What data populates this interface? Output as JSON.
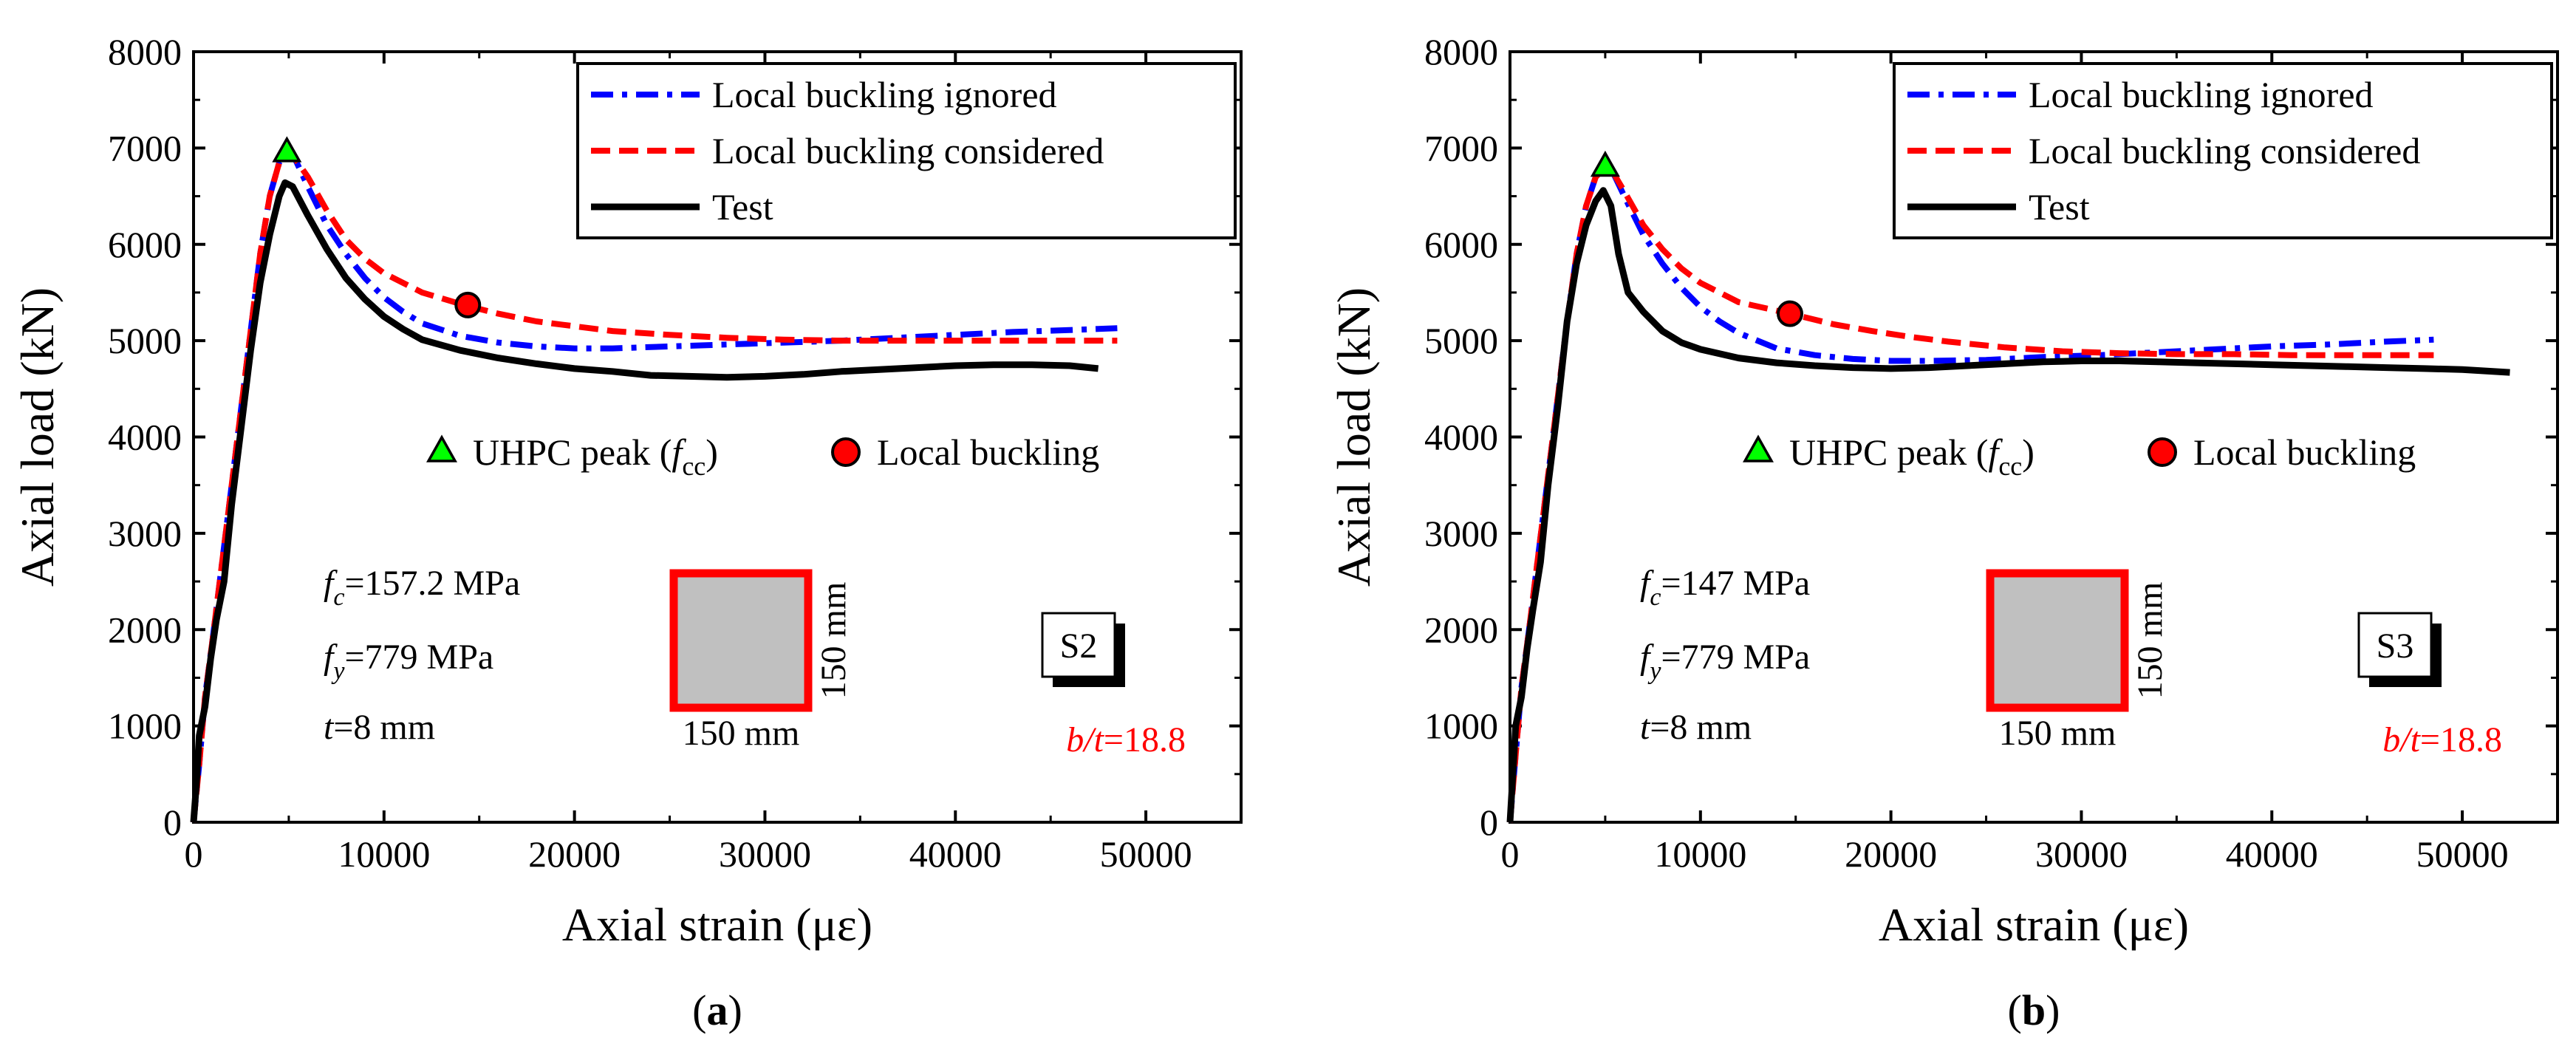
{
  "chart_data": [
    {
      "type": "line",
      "panel_label": "a",
      "xlabel": "Axial strain (με)",
      "ylabel": "Axial load (kN)",
      "xlim": [
        0,
        55000
      ],
      "ylim": [
        0,
        8000
      ],
      "x_ticks": [
        "0",
        "10000",
        "20000",
        "30000",
        "40000",
        "50000"
      ],
      "y_ticks": [
        "0",
        "1000",
        "2000",
        "3000",
        "4000",
        "5000",
        "6000",
        "7000",
        "8000"
      ],
      "legend": [
        "Local buckling ignored",
        "Local buckling considered",
        "Test"
      ],
      "marker_legend": {
        "peak": "UHPC peak (",
        "peak_symbol": "f",
        "peak_sub": "cc",
        "peak_close": ")",
        "buckling": "Local buckling"
      },
      "series": [
        {
          "name": "Local buckling ignored",
          "color": "#0000ff",
          "style": "dashdot",
          "points": [
            [
              0,
              0
            ],
            [
              300,
              600
            ],
            [
              600,
              1300
            ],
            [
              1000,
              1900
            ],
            [
              1500,
              2700
            ],
            [
              2000,
              3500
            ],
            [
              2500,
              4300
            ],
            [
              3000,
              5100
            ],
            [
              3500,
              5900
            ],
            [
              4000,
              6500
            ],
            [
              4500,
              6850
            ],
            [
              4900,
              6950
            ],
            [
              5300,
              6900
            ],
            [
              6000,
              6600
            ],
            [
              7000,
              6200
            ],
            [
              8000,
              5900
            ],
            [
              9000,
              5650
            ],
            [
              10000,
              5450
            ],
            [
              11000,
              5300
            ],
            [
              12000,
              5180
            ],
            [
              14000,
              5050
            ],
            [
              16000,
              4980
            ],
            [
              18000,
              4940
            ],
            [
              20000,
              4920
            ],
            [
              22000,
              4920
            ],
            [
              25000,
              4940
            ],
            [
              28000,
              4960
            ],
            [
              31000,
              4980
            ],
            [
              34000,
              5000
            ],
            [
              37000,
              5030
            ],
            [
              40000,
              5060
            ],
            [
              43000,
              5090
            ],
            [
              46000,
              5110
            ],
            [
              48500,
              5130
            ]
          ]
        },
        {
          "name": "Local buckling considered",
          "color": "#ff0000",
          "style": "dashed",
          "points": [
            [
              0,
              0
            ],
            [
              300,
              600
            ],
            [
              600,
              1300
            ],
            [
              1000,
              1900
            ],
            [
              1500,
              2700
            ],
            [
              2000,
              3500
            ],
            [
              2500,
              4300
            ],
            [
              3000,
              5100
            ],
            [
              3500,
              5900
            ],
            [
              4000,
              6500
            ],
            [
              4500,
              6850
            ],
            [
              4900,
              6950
            ],
            [
              5300,
              6900
            ],
            [
              6000,
              6700
            ],
            [
              7000,
              6350
            ],
            [
              8000,
              6050
            ],
            [
              9000,
              5850
            ],
            [
              10000,
              5700
            ],
            [
              12000,
              5500
            ],
            [
              14200,
              5370
            ],
            [
              16000,
              5280
            ],
            [
              18000,
              5200
            ],
            [
              20000,
              5150
            ],
            [
              22000,
              5100
            ],
            [
              25000,
              5060
            ],
            [
              28000,
              5030
            ],
            [
              31000,
              5010
            ],
            [
              34000,
              5000
            ],
            [
              37000,
              5000
            ],
            [
              40000,
              5000
            ],
            [
              43000,
              5000
            ],
            [
              46000,
              5000
            ],
            [
              48500,
              5000
            ]
          ]
        },
        {
          "name": "Test",
          "color": "#000000",
          "style": "solid",
          "points": [
            [
              0,
              0
            ],
            [
              150,
              400
            ],
            [
              300,
              900
            ],
            [
              600,
              1200
            ],
            [
              900,
              1700
            ],
            [
              1200,
              2100
            ],
            [
              1600,
              2500
            ],
            [
              2000,
              3300
            ],
            [
              2500,
              4100
            ],
            [
              3000,
              4900
            ],
            [
              3500,
              5600
            ],
            [
              4000,
              6100
            ],
            [
              4500,
              6500
            ],
            [
              4800,
              6640
            ],
            [
              5200,
              6600
            ],
            [
              6000,
              6300
            ],
            [
              7000,
              5950
            ],
            [
              8000,
              5650
            ],
            [
              9000,
              5430
            ],
            [
              10000,
              5250
            ],
            [
              11000,
              5120
            ],
            [
              12000,
              5010
            ],
            [
              14000,
              4900
            ],
            [
              16000,
              4820
            ],
            [
              18000,
              4760
            ],
            [
              20000,
              4710
            ],
            [
              22000,
              4680
            ],
            [
              24000,
              4640
            ],
            [
              26000,
              4630
            ],
            [
              28000,
              4620
            ],
            [
              30000,
              4630
            ],
            [
              32000,
              4650
            ],
            [
              34000,
              4680
            ],
            [
              36000,
              4700
            ],
            [
              38000,
              4720
            ],
            [
              40000,
              4740
            ],
            [
              42000,
              4750
            ],
            [
              44000,
              4750
            ],
            [
              46000,
              4740
            ],
            [
              47500,
              4710
            ]
          ]
        }
      ],
      "peak_marker": {
        "x": 4900,
        "y": 6950,
        "color": "#00ff00"
      },
      "buckling_marker": {
        "x": 14400,
        "y": 5370,
        "color": "#ff0000"
      },
      "params": [
        {
          "sym": "f",
          "sub": "c",
          "val": "=157.2 MPa"
        },
        {
          "sym": "f",
          "sub": "y",
          "val": "=779 MPa"
        },
        {
          "sym": "t",
          "sub": "",
          "val": "=8 mm"
        }
      ],
      "section": {
        "width_label": "150 mm",
        "height_label": "150 mm"
      },
      "specimen": "S2",
      "ratio": {
        "sym": "b/t",
        "val": "=18.8"
      }
    },
    {
      "type": "line",
      "panel_label": "b",
      "xlabel": "Axial strain (με)",
      "ylabel": "Axial load (kN)",
      "xlim": [
        0,
        55000
      ],
      "ylim": [
        0,
        8000
      ],
      "x_ticks": [
        "0",
        "10000",
        "20000",
        "30000",
        "40000",
        "50000"
      ],
      "y_ticks": [
        "0",
        "1000",
        "2000",
        "3000",
        "4000",
        "5000",
        "6000",
        "7000",
        "8000"
      ],
      "legend": [
        "Local buckling ignored",
        "Local buckling considered",
        "Test"
      ],
      "marker_legend": {
        "peak": "UHPC peak (",
        "peak_symbol": "f",
        "peak_sub": "cc",
        "peak_close": ")",
        "buckling": "Local buckling"
      },
      "series": [
        {
          "name": "Local buckling ignored",
          "color": "#0000ff",
          "style": "dashdot",
          "points": [
            [
              0,
              0
            ],
            [
              300,
              700
            ],
            [
              600,
              1400
            ],
            [
              1000,
              2000
            ],
            [
              1500,
              2800
            ],
            [
              2000,
              3600
            ],
            [
              2500,
              4400
            ],
            [
              3000,
              5200
            ],
            [
              3500,
              5900
            ],
            [
              4000,
              6400
            ],
            [
              4500,
              6700
            ],
            [
              5000,
              6800
            ],
            [
              5400,
              6750
            ],
            [
              6000,
              6500
            ],
            [
              7000,
              6100
            ],
            [
              8000,
              5800
            ],
            [
              9000,
              5550
            ],
            [
              10000,
              5350
            ],
            [
              11000,
              5200
            ],
            [
              12000,
              5080
            ],
            [
              14000,
              4920
            ],
            [
              16000,
              4850
            ],
            [
              18000,
              4810
            ],
            [
              20000,
              4790
            ],
            [
              22000,
              4790
            ],
            [
              25000,
              4800
            ],
            [
              28000,
              4830
            ],
            [
              31000,
              4850
            ],
            [
              34000,
              4880
            ],
            [
              37000,
              4910
            ],
            [
              40000,
              4940
            ],
            [
              43000,
              4960
            ],
            [
              46000,
              4990
            ],
            [
              48500,
              5010
            ]
          ]
        },
        {
          "name": "Local buckling considered",
          "color": "#ff0000",
          "style": "dashed",
          "points": [
            [
              0,
              0
            ],
            [
              300,
              700
            ],
            [
              600,
              1400
            ],
            [
              1000,
              2000
            ],
            [
              1500,
              2800
            ],
            [
              2000,
              3600
            ],
            [
              2500,
              4400
            ],
            [
              3000,
              5200
            ],
            [
              3500,
              5900
            ],
            [
              4000,
              6400
            ],
            [
              4500,
              6700
            ],
            [
              5000,
              6800
            ],
            [
              5400,
              6750
            ],
            [
              6000,
              6550
            ],
            [
              7000,
              6200
            ],
            [
              8000,
              5950
            ],
            [
              9000,
              5750
            ],
            [
              10000,
              5600
            ],
            [
              12000,
              5400
            ],
            [
              14700,
              5280
            ],
            [
              17000,
              5170
            ],
            [
              19000,
              5100
            ],
            [
              21000,
              5040
            ],
            [
              23000,
              4990
            ],
            [
              26000,
              4930
            ],
            [
              29000,
              4890
            ],
            [
              32000,
              4870
            ],
            [
              35000,
              4860
            ],
            [
              38000,
              4860
            ],
            [
              41000,
              4850
            ],
            [
              44000,
              4850
            ],
            [
              47000,
              4850
            ],
            [
              48500,
              4850
            ]
          ]
        },
        {
          "name": "Test",
          "color": "#000000",
          "style": "solid",
          "points": [
            [
              0,
              0
            ],
            [
              150,
              500
            ],
            [
              300,
              1000
            ],
            [
              600,
              1300
            ],
            [
              900,
              1800
            ],
            [
              1200,
              2200
            ],
            [
              1600,
              2700
            ],
            [
              2000,
              3500
            ],
            [
              2500,
              4300
            ],
            [
              3000,
              5200
            ],
            [
              3500,
              5800
            ],
            [
              4000,
              6200
            ],
            [
              4500,
              6450
            ],
            [
              4900,
              6560
            ],
            [
              5300,
              6400
            ],
            [
              5700,
              5900
            ],
            [
              6200,
              5500
            ],
            [
              7000,
              5300
            ],
            [
              8000,
              5100
            ],
            [
              9000,
              4980
            ],
            [
              10000,
              4910
            ],
            [
              12000,
              4820
            ],
            [
              14000,
              4770
            ],
            [
              16000,
              4740
            ],
            [
              18000,
              4720
            ],
            [
              20000,
              4710
            ],
            [
              22000,
              4720
            ],
            [
              24000,
              4740
            ],
            [
              26000,
              4760
            ],
            [
              28000,
              4780
            ],
            [
              30000,
              4790
            ],
            [
              32000,
              4790
            ],
            [
              34000,
              4780
            ],
            [
              36000,
              4770
            ],
            [
              38000,
              4760
            ],
            [
              40000,
              4750
            ],
            [
              42000,
              4740
            ],
            [
              44000,
              4730
            ],
            [
              46000,
              4720
            ],
            [
              48000,
              4710
            ],
            [
              50000,
              4700
            ],
            [
              52500,
              4670
            ]
          ]
        }
      ],
      "peak_marker": {
        "x": 5000,
        "y": 6800,
        "color": "#00ff00"
      },
      "buckling_marker": {
        "x": 14700,
        "y": 5280,
        "color": "#ff0000"
      },
      "params": [
        {
          "sym": "f",
          "sub": "c",
          "val": "=147 MPa"
        },
        {
          "sym": "f",
          "sub": "y",
          "val": "=779 MPa"
        },
        {
          "sym": "t",
          "sub": "",
          "val": "=8 mm"
        }
      ],
      "section": {
        "width_label": "150 mm",
        "height_label": "150 mm"
      },
      "specimen": "S3",
      "ratio": {
        "sym": "b/t",
        "val": "=18.8"
      }
    }
  ]
}
